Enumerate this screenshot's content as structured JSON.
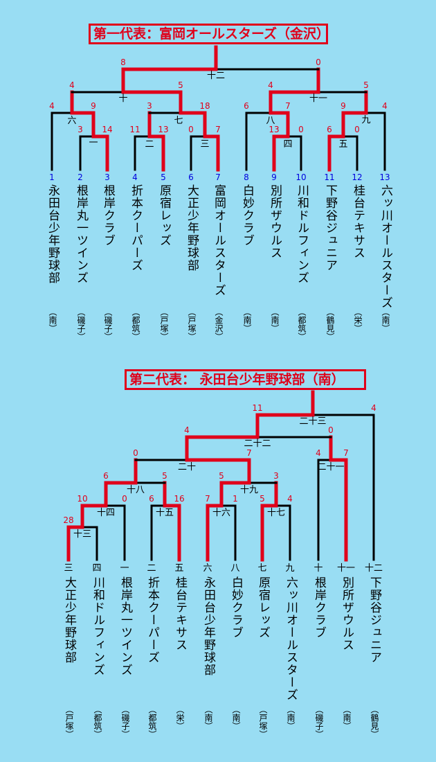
{
  "sections": [
    {
      "title": "第一代表：富岡オールスターズ（金沢）",
      "teams": [
        {
          "num": "1",
          "name": "永田台少年野球部",
          "city": "（南）"
        },
        {
          "num": "2",
          "name": "根岸丸一ツインズ",
          "city": "（磯子）"
        },
        {
          "num": "3",
          "name": "根岸クラブ",
          "city": "（磯子）"
        },
        {
          "num": "4",
          "name": "折本クーパーズ",
          "city": "（都筑）"
        },
        {
          "num": "5",
          "name": "原宿レッズ",
          "city": "（戸塚）"
        },
        {
          "num": "6",
          "name": "大正少年野球部",
          "city": "（戸塚）"
        },
        {
          "num": "7",
          "name": "富岡オールスターズ",
          "city": "（金沢）"
        },
        {
          "num": "8",
          "name": "白妙クラブ",
          "city": "（南）"
        },
        {
          "num": "9",
          "name": "別所ザウルス",
          "city": "（南）"
        },
        {
          "num": "10",
          "name": "川和ドルフィンズ",
          "city": "（都筑）"
        },
        {
          "num": "11",
          "name": "下野谷ジュニア",
          "city": "（鶴見）"
        },
        {
          "num": "12",
          "name": "桂台テキサス",
          "city": "（栄）"
        },
        {
          "num": "13",
          "name": "六ッ川オールスターズ",
          "city": "（南）"
        }
      ],
      "matches": [
        {
          "label": "一",
          "s1": "3",
          "s2": "14"
        },
        {
          "label": "二",
          "s1": "11",
          "s2": "13"
        },
        {
          "label": "三",
          "s1": "0",
          "s2": "7"
        },
        {
          "label": "四",
          "s1": "13",
          "s2": "0"
        },
        {
          "label": "五",
          "s1": "6",
          "s2": "0"
        },
        {
          "label": "六",
          "s1": "4",
          "s2": "9"
        },
        {
          "label": "七",
          "s1": "3",
          "s2": "18"
        },
        {
          "label": "八",
          "s1": "6",
          "s2": "7"
        },
        {
          "label": "九",
          "s1": "9",
          "s2": "4"
        },
        {
          "label": "十",
          "s1": "4",
          "s2": "5"
        },
        {
          "label": "十一",
          "s1": "4",
          "s2": "5"
        },
        {
          "label": "十二",
          "s1": "8",
          "s2": "0"
        }
      ]
    },
    {
      "title": "第二代表： 永田台少年野球部（南）",
      "teams": [
        {
          "num": "三",
          "name": "大正少年野球部",
          "city": "（戸塚）"
        },
        {
          "num": "四",
          "name": "川和ドルフィンズ",
          "city": "（都筑）"
        },
        {
          "num": "一",
          "name": "根岸丸一ツインズ",
          "city": "（磯子）"
        },
        {
          "num": "二",
          "name": "折本クーパーズ",
          "city": "（都筑）"
        },
        {
          "num": "五",
          "name": "桂台テキサス",
          "city": "（栄）"
        },
        {
          "num": "六",
          "name": "永田台少年野球部",
          "city": "（南）"
        },
        {
          "num": "八",
          "name": "白妙クラブ",
          "city": "（南）"
        },
        {
          "num": "七",
          "name": "原宿レッズ",
          "city": "（戸塚）"
        },
        {
          "num": "九",
          "name": "六ッ川オールスターズ",
          "city": "（南）"
        },
        {
          "num": "十",
          "name": "根岸クラブ",
          "city": "（磯子）"
        },
        {
          "num": "十一",
          "name": "別所ザウルス",
          "city": "（南）"
        },
        {
          "num": "十二",
          "name": "下野谷ジュニア",
          "city": "（鶴見）"
        }
      ],
      "matches": [
        {
          "label": "十三",
          "s1": "28",
          "s2": ""
        },
        {
          "label": "十四",
          "s1": "10",
          "s2": "0"
        },
        {
          "label": "十五",
          "s1": "6",
          "s2": "16"
        },
        {
          "label": "十六",
          "s1": "7",
          "s2": "1"
        },
        {
          "label": "十七",
          "s1": "5",
          "s2": "4"
        },
        {
          "label": "十八",
          "s1": "6",
          "s2": "5"
        },
        {
          "label": "十九",
          "s1": "5",
          "s2": "3"
        },
        {
          "label": "二十",
          "s1": "0",
          "s2": "7"
        },
        {
          "label": "二十一",
          "s1": "4",
          "s2": "7"
        },
        {
          "label": "二十二",
          "s1": "4",
          "s2": "0"
        },
        {
          "label": "二十三",
          "s1": "11",
          "s2": "4"
        }
      ]
    }
  ],
  "colors": {
    "background": "#99ddf3",
    "winner_path": "#e0001a",
    "line": "#000000",
    "seed_number": "#0000dd",
    "score": "#e0001a"
  }
}
